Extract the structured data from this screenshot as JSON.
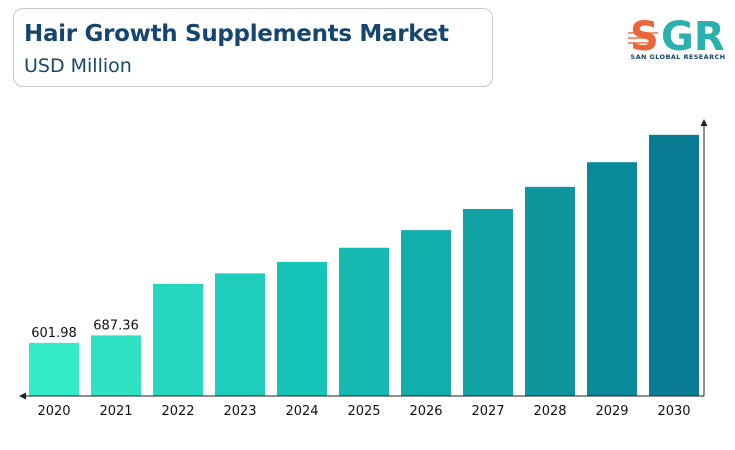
{
  "header": {
    "title": "Hair Growth Supplements Market",
    "subtitle": "USD Million"
  },
  "logo": {
    "letters": "SGR",
    "tagline": "SAN GLOBAL RESEARCH",
    "colors": {
      "s": "#e8663a",
      "gr": "#2bb0b0",
      "stripe": "#e8663a"
    }
  },
  "chart_data": {
    "type": "bar",
    "title": "Hair Growth Supplements Market",
    "subtitle": "USD Million",
    "xlabel": "",
    "ylabel": "",
    "categories": [
      "2020",
      "2021",
      "2022",
      "2023",
      "2024",
      "2025",
      "2026",
      "2027",
      "2028",
      "2029",
      "2030"
    ],
    "values": [
      601.98,
      687.36,
      1270,
      1390,
      1520,
      1680,
      1880,
      2120,
      2370,
      2650,
      2960
    ],
    "data_labels": [
      "601.98",
      "687.36",
      "",
      "",
      "",
      "",
      "",
      "",
      "",
      "",
      ""
    ],
    "ylim": [
      0,
      3400
    ],
    "grid": false,
    "colors": [
      "#33eac9",
      "#2fe2c4",
      "#26d6bf",
      "#1fcdbd",
      "#17c4b8",
      "#14bab2",
      "#11aeab",
      "#0fa1a4",
      "#0d969e",
      "#0a8a98",
      "#087c92"
    ]
  }
}
